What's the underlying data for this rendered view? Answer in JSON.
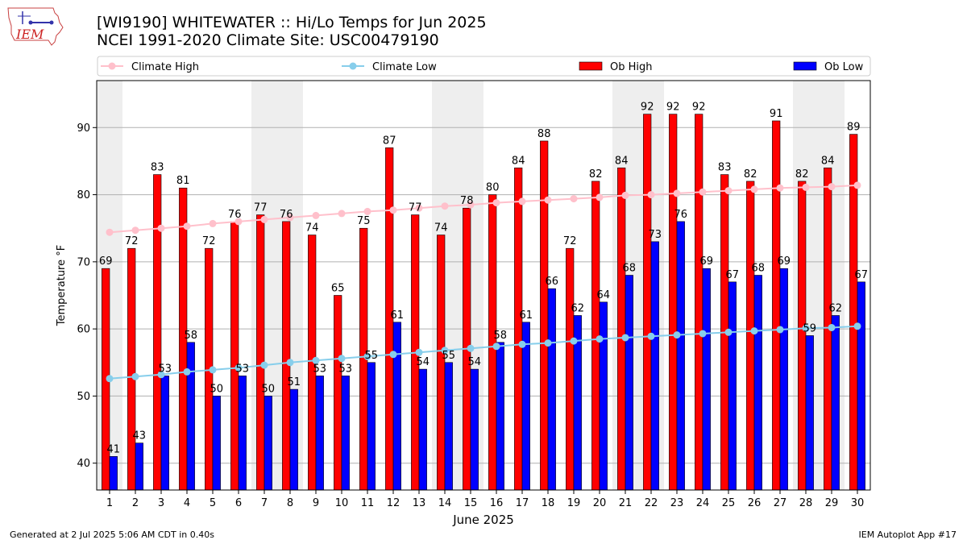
{
  "header": {
    "title_line1": "[WI9190] WHITEWATER :: Hi/Lo Temps for Jun 2025",
    "title_line2": "NCEI 1991-2020 Climate Site: USC00479190",
    "logo_text": "IEM"
  },
  "footer": {
    "generated": "Generated at 2 Jul 2025 5:06 AM CDT in 0.40s",
    "app": "IEM Autoplot App #17"
  },
  "colors": {
    "ob_high": "#ff0000",
    "ob_low": "#0000ff",
    "climate_high": "#ffc0cb",
    "climate_low": "#87ceeb",
    "weekend_shade": "#eeeeee"
  },
  "chart_data": {
    "type": "bar",
    "xlabel": "June 2025",
    "ylabel": "Temperature °F",
    "ylim": [
      36,
      97
    ],
    "yticks": [
      40,
      50,
      60,
      70,
      80,
      90
    ],
    "grid": true,
    "legend_placement": "top",
    "categories": [
      "1",
      "2",
      "3",
      "4",
      "5",
      "6",
      "7",
      "8",
      "9",
      "10",
      "11",
      "12",
      "13",
      "14",
      "15",
      "16",
      "17",
      "18",
      "19",
      "20",
      "21",
      "22",
      "23",
      "24",
      "25",
      "26",
      "27",
      "28",
      "29",
      "30"
    ],
    "shaded_days": [
      1,
      7,
      8,
      14,
      15,
      21,
      22,
      28,
      29
    ],
    "series": [
      {
        "name": "Climate High",
        "kind": "line",
        "values": [
          74.4,
          74.7,
          75.0,
          75.3,
          75.7,
          76.0,
          76.3,
          76.6,
          76.9,
          77.2,
          77.5,
          77.7,
          78.0,
          78.3,
          78.5,
          78.8,
          79.0,
          79.2,
          79.4,
          79.6,
          79.9,
          80.0,
          80.2,
          80.4,
          80.6,
          80.8,
          81.0,
          81.1,
          81.2,
          81.4
        ]
      },
      {
        "name": "Climate Low",
        "kind": "line",
        "values": [
          52.6,
          52.9,
          53.2,
          53.6,
          53.9,
          54.2,
          54.6,
          55.0,
          55.3,
          55.6,
          55.9,
          56.2,
          56.5,
          56.8,
          57.1,
          57.4,
          57.7,
          57.9,
          58.2,
          58.5,
          58.7,
          58.9,
          59.1,
          59.3,
          59.5,
          59.7,
          59.9,
          60.1,
          60.2,
          60.4
        ]
      },
      {
        "name": "Ob High",
        "kind": "bar",
        "values": [
          69,
          72,
          83,
          81,
          72,
          76,
          77,
          76,
          74,
          65,
          75,
          87,
          77,
          74,
          78,
          80,
          84,
          88,
          72,
          82,
          84,
          92,
          92,
          92,
          83,
          82,
          91,
          82,
          84,
          89
        ]
      },
      {
        "name": "Ob Low",
        "kind": "bar",
        "values": [
          41,
          43,
          53,
          58,
          50,
          53,
          50,
          51,
          53,
          53,
          55,
          61,
          54,
          55,
          54,
          58,
          61,
          66,
          62,
          64,
          68,
          73,
          76,
          69,
          67,
          68,
          69,
          59,
          62,
          67
        ]
      }
    ]
  }
}
